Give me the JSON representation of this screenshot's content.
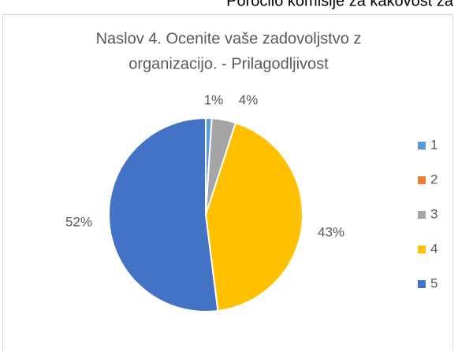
{
  "header": "Poročilo komisije za kakovost za",
  "chart_data": {
    "type": "pie",
    "title": [
      "Naslov 4. Ocenite vaše zadovoljstvo z",
      "organizacijo. - Prilagodljivost"
    ],
    "categories": [
      "1",
      "2",
      "3",
      "4",
      "5"
    ],
    "values": [
      1,
      0,
      4,
      43,
      52
    ],
    "value_labels": [
      "1%",
      null,
      "4%",
      "43%",
      "52%"
    ],
    "colors": [
      "#5b9bd5",
      "#ed7d31",
      "#a5a5a5",
      "#ffc000",
      "#4472c4"
    ],
    "legend": "right"
  }
}
